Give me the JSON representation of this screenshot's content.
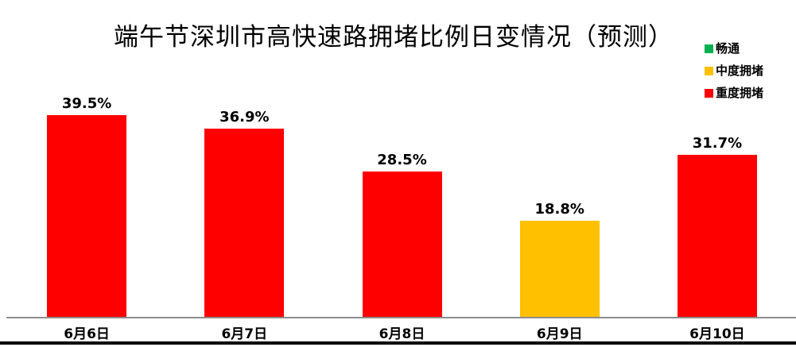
{
  "title": "端午节深圳市高快速路拥堵比例日变情况（预测）",
  "legend": {
    "position": "top-right",
    "items": [
      {
        "label": "畅通",
        "color": "#00B050"
      },
      {
        "label": "中度拥堵",
        "color": "#FFC000"
      },
      {
        "label": "重度拥堵",
        "color": "#FF0000"
      }
    ]
  },
  "chart_data": {
    "type": "bar",
    "title": "端午节深圳市高快速路拥堵比例日变情况（预测）",
    "categories": [
      "6月6日",
      "6月7日",
      "6月8日",
      "6月9日",
      "6月10日"
    ],
    "values": [
      39.5,
      36.9,
      28.5,
      18.8,
      31.7
    ],
    "value_labels": [
      "39.5%",
      "36.9%",
      "28.5%",
      "18.8%",
      "31.7%"
    ],
    "series_by_bar": [
      "重度拥堵",
      "重度拥堵",
      "重度拥堵",
      "中度拥堵",
      "重度拥堵"
    ],
    "bar_colors": [
      "#FF0000",
      "#FF0000",
      "#FF0000",
      "#FFC000",
      "#FF0000"
    ],
    "unit": "%",
    "xlabel": "",
    "ylabel": "",
    "ylim": [
      0,
      43.5
    ],
    "grid": false,
    "y_axis_visible": false,
    "legend_position": "top-right"
  },
  "colors": {
    "severe_congestion": "#FF0000",
    "moderate_congestion": "#FFC000",
    "smooth_traffic": "#00B050",
    "axis_line": "#8C8C8C",
    "bottom_rule": "#000000",
    "text": "#000000",
    "background": "#FFFFFF"
  }
}
